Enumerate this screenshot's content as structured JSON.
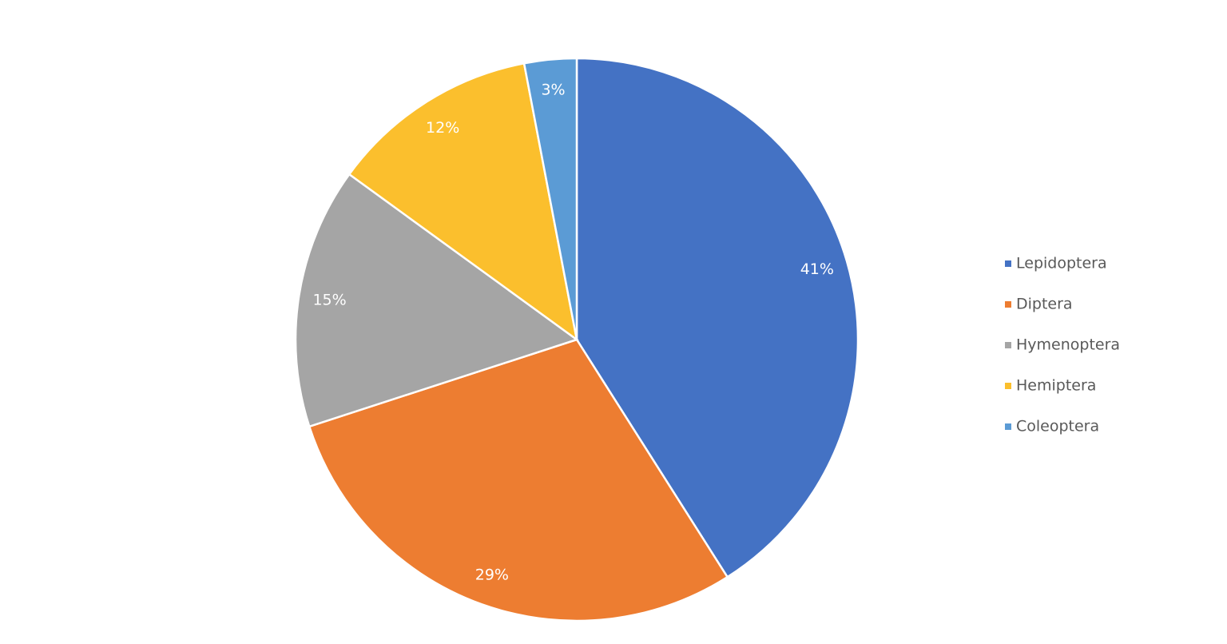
{
  "chart_data": {
    "type": "pie",
    "categories": [
      "Lepidoptera",
      "Diptera",
      "Hymenoptera",
      "Hemiptera",
      "Coleoptera"
    ],
    "values": [
      41,
      29,
      15,
      12,
      3
    ],
    "value_labels": [
      "41%",
      "29%",
      "15%",
      "12%",
      "3%"
    ],
    "colors": [
      "#4472c4",
      "#ed7d31",
      "#a5a5a5",
      "#fbbf2d",
      "#5b9bd5"
    ],
    "legend": "right"
  }
}
